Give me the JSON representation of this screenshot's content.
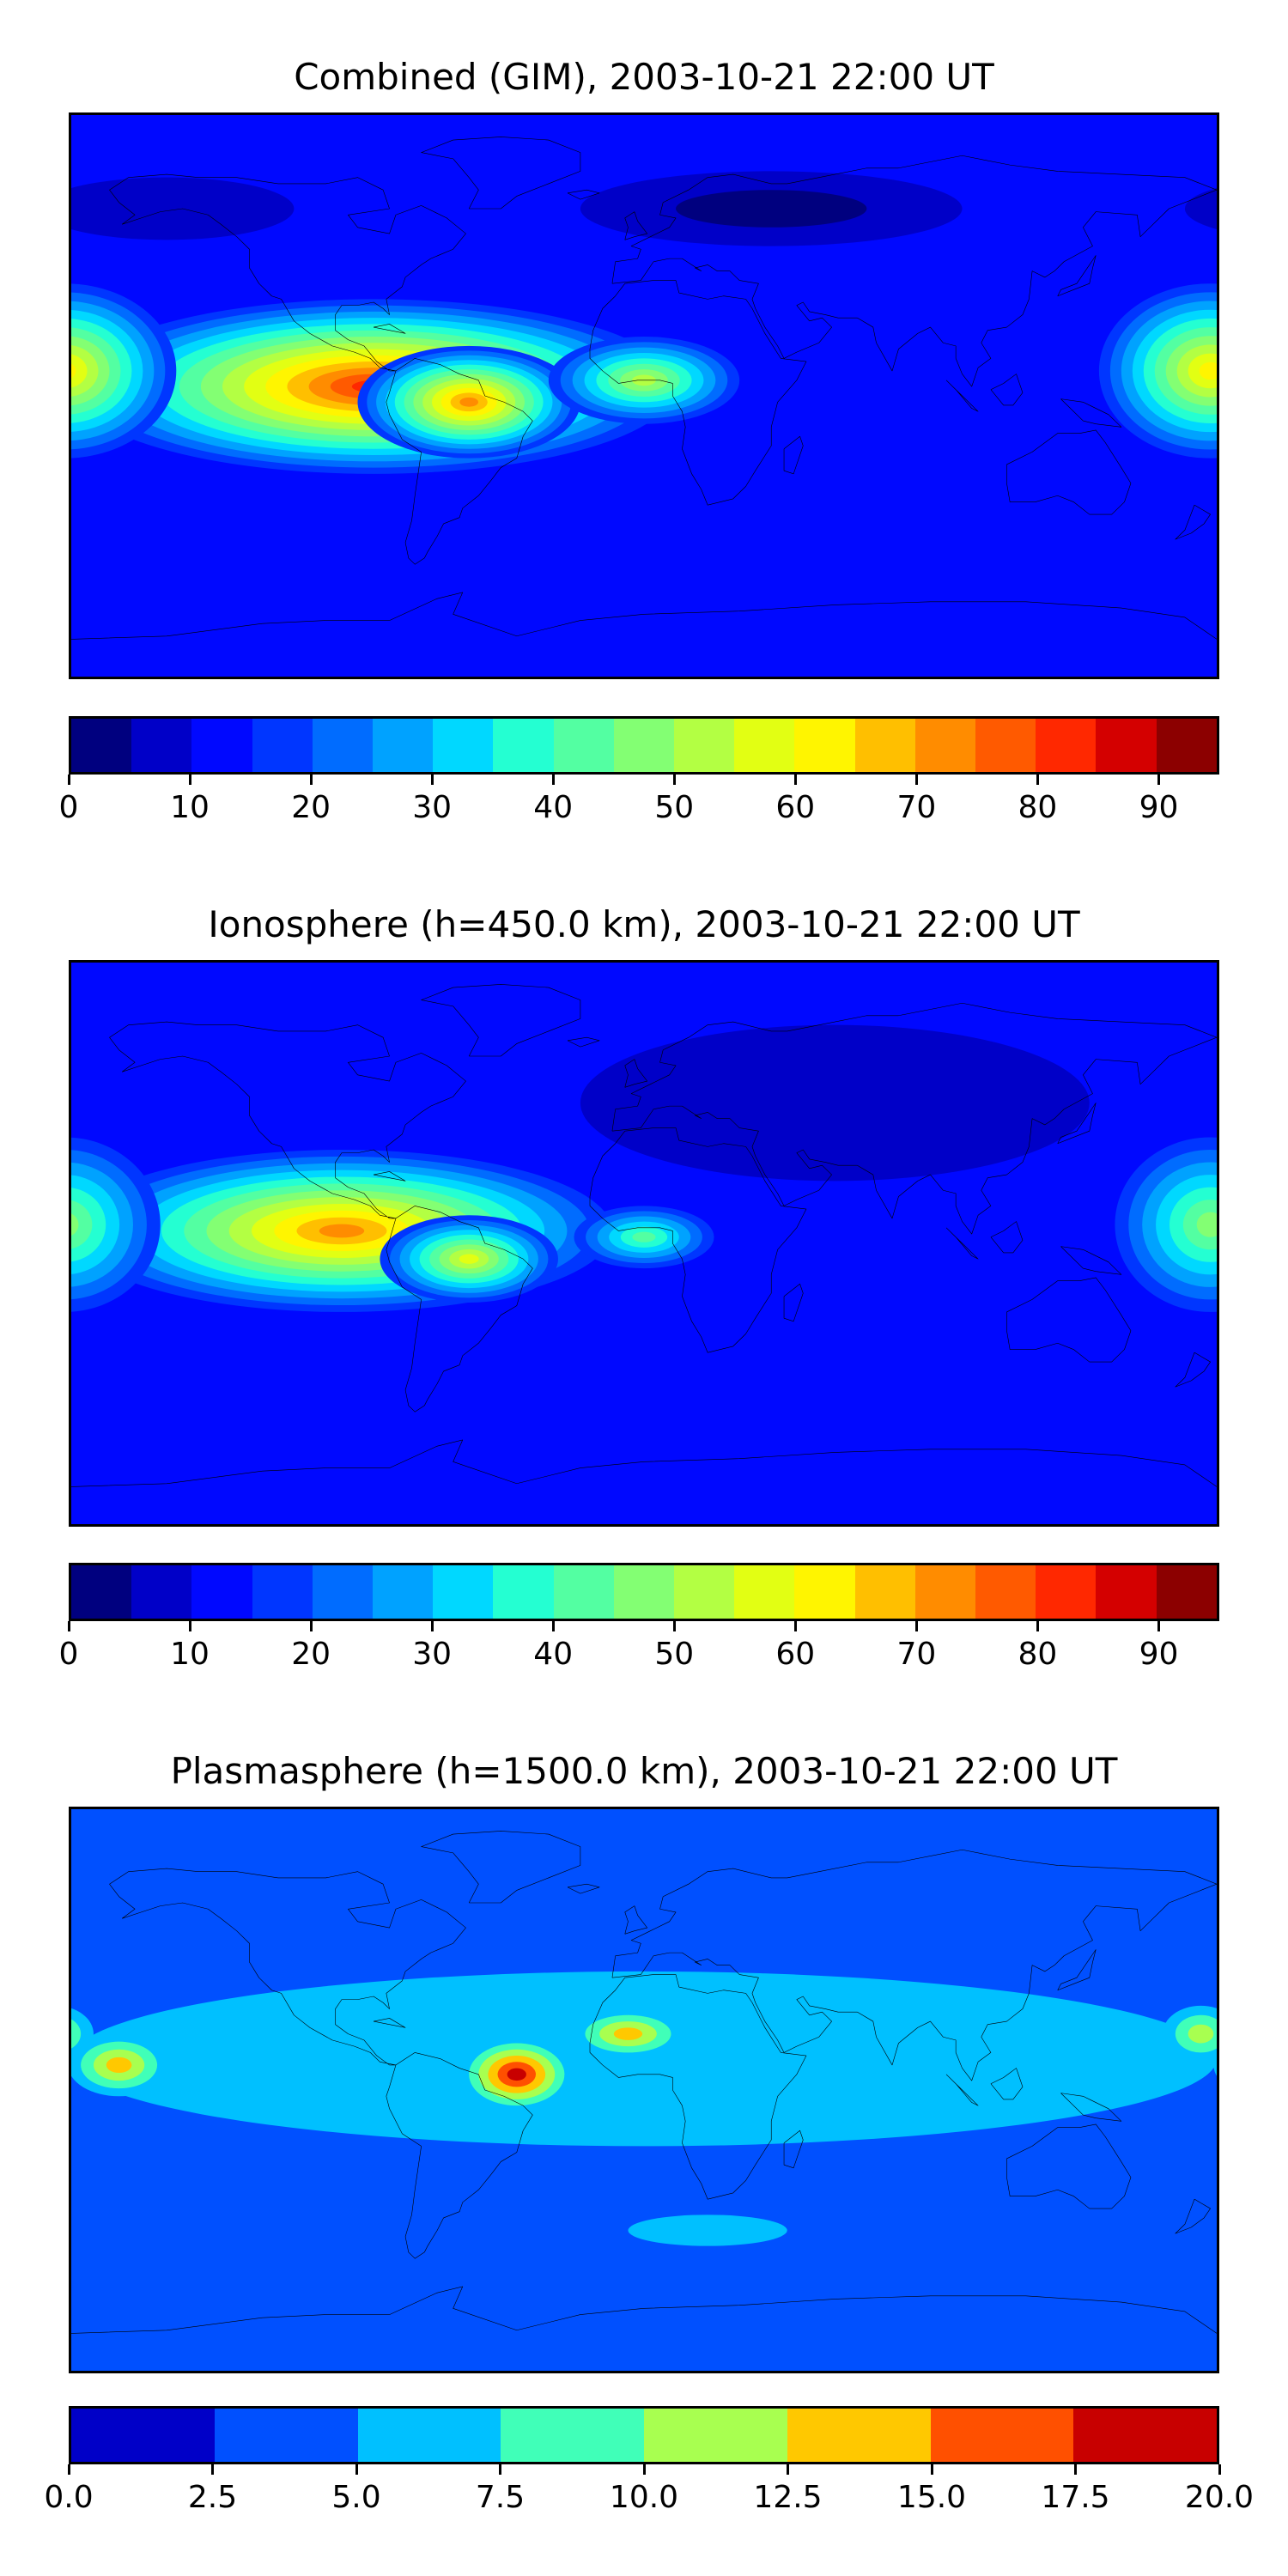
{
  "colors": {
    "coastline": "#000000",
    "jet18": [
      "#00007f",
      "#0000c8",
      "#0008ff",
      "#0036ff",
      "#006cff",
      "#00a2ff",
      "#00d8ff",
      "#24ffd2",
      "#53ffa2",
      "#83ff73",
      "#b3ff43",
      "#e2ff13",
      "#fff500",
      "#ffbf00",
      "#ff8c00",
      "#ff5a00",
      "#ff2800",
      "#d40000",
      "#8c0000"
    ],
    "jet8": [
      "#0000c8",
      "#0050ff",
      "#00c0ff",
      "#40ffb8",
      "#a8ff50",
      "#ffc800",
      "#ff5000",
      "#c80000"
    ]
  },
  "panels": [
    {
      "id": "combined",
      "title": "Combined (GIM), 2003-10-21 22:00 UT",
      "base_level": 2,
      "colorbar": {
        "levels": 19,
        "ticks": [
          "0",
          "10",
          "20",
          "30",
          "40",
          "50",
          "60",
          "70",
          "80",
          "90"
        ],
        "min": 0,
        "max": 95,
        "step": 10
      },
      "features": [
        {
          "lon": -85,
          "lat": 3,
          "rx": 95,
          "ry": 28,
          "peak": 16
        },
        {
          "lon": -55,
          "lat": -2,
          "rx": 35,
          "ry": 18,
          "peak": 14
        },
        {
          "lon": 0,
          "lat": 5,
          "rx": 30,
          "ry": 14,
          "peak": 10
        },
        {
          "lon": 178,
          "lat": 8,
          "rx": 35,
          "ry": 28,
          "peak": 12
        },
        {
          "lon": -150,
          "lat": 60,
          "rx": 40,
          "ry": 10,
          "peak": 1
        },
        {
          "lon": 40,
          "lat": 60,
          "rx": 60,
          "ry": 12,
          "peak": 0
        }
      ]
    },
    {
      "id": "ionosphere",
      "title": "Ionosphere  (h=450.0 km), 2003-10-21 22:00 UT",
      "base_level": 2,
      "colorbar": {
        "levels": 19,
        "ticks": [
          "0",
          "10",
          "20",
          "30",
          "40",
          "50",
          "60",
          "70",
          "80",
          "90"
        ],
        "min": 0,
        "max": 95,
        "step": 10
      },
      "features": [
        {
          "lon": -95,
          "lat": 4,
          "rx": 85,
          "ry": 26,
          "peak": 14
        },
        {
          "lon": -55,
          "lat": -5,
          "rx": 28,
          "ry": 14,
          "peak": 11
        },
        {
          "lon": 0,
          "lat": 2,
          "rx": 22,
          "ry": 10,
          "peak": 8
        },
        {
          "lon": 178,
          "lat": 6,
          "rx": 30,
          "ry": 28,
          "peak": 9
        },
        {
          "lon": 60,
          "lat": 45,
          "rx": 80,
          "ry": 25,
          "peak": 1
        }
      ]
    },
    {
      "id": "plasmasphere",
      "title": "Plasmasphere (h=1500.0 km), 2003-10-21 22:00 UT",
      "base_level": 1,
      "colorbar": {
        "levels": 8,
        "ticks": [
          "0.0",
          "2.5",
          "5.0",
          "7.5",
          "10.0",
          "12.5",
          "15.0",
          "17.5",
          "20.0"
        ],
        "min": 0,
        "max": 20,
        "step": 2.5
      },
      "features": [
        {
          "lon": 0,
          "lat": 10,
          "rx": 180,
          "ry": 28,
          "peak": 2
        },
        {
          "lon": -40,
          "lat": 5,
          "rx": 18,
          "ry": 12,
          "peak": 7
        },
        {
          "lon": -5,
          "lat": 18,
          "rx": 18,
          "ry": 8,
          "peak": 5
        },
        {
          "lon": -165,
          "lat": 8,
          "rx": 16,
          "ry": 10,
          "peak": 5
        },
        {
          "lon": 175,
          "lat": 18,
          "rx": 12,
          "ry": 9,
          "peak": 4
        },
        {
          "lon": 20,
          "lat": -45,
          "rx": 25,
          "ry": 5,
          "peak": 2
        }
      ]
    }
  ]
}
